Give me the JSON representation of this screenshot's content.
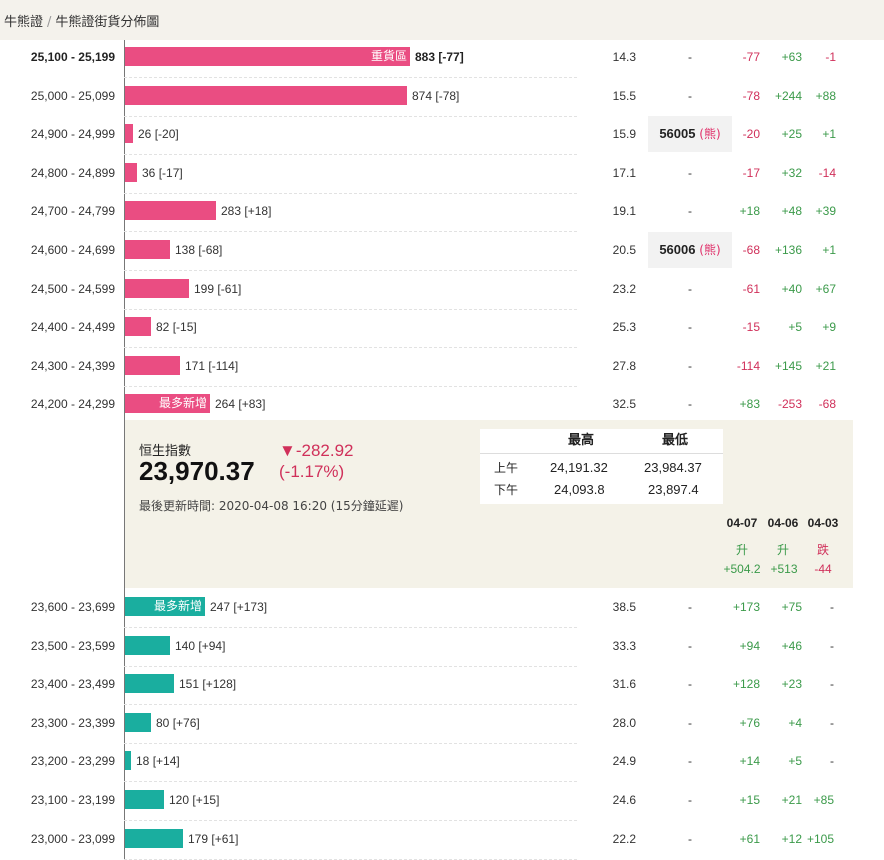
{
  "breadcrumb": {
    "parent": "牛熊證",
    "current": "牛熊證街貨分佈圖"
  },
  "bull_rows": [
    {
      "range": "25,100 - 25,199",
      "value": 883,
      "change": "[-77]",
      "ratio": "14.3",
      "strike": "-",
      "tag": "重貨區",
      "bold": true,
      "changes": [
        "-77",
        "+63",
        "-1"
      ]
    },
    {
      "range": "25,000 - 25,099",
      "value": 874,
      "change": "[-78]",
      "ratio": "15.5",
      "strike": "-",
      "tag": "",
      "bold": false,
      "changes": [
        "-78",
        "+244",
        "+88"
      ]
    },
    {
      "range": "24,900 - 24,999",
      "value": 26,
      "change": "[-20]",
      "ratio": "15.9",
      "strike": "56005",
      "strike_kind": "熊",
      "tag": "",
      "bold": false,
      "changes": [
        "-20",
        "+25",
        "+1"
      ]
    },
    {
      "range": "24,800 - 24,899",
      "value": 36,
      "change": "[-17]",
      "ratio": "17.1",
      "strike": "-",
      "tag": "",
      "bold": false,
      "changes": [
        "-17",
        "+32",
        "-14"
      ]
    },
    {
      "range": "24,700 - 24,799",
      "value": 283,
      "change": "[+18]",
      "ratio": "19.1",
      "strike": "-",
      "tag": "",
      "bold": false,
      "changes": [
        "+18",
        "+48",
        "+39"
      ]
    },
    {
      "range": "24,600 - 24,699",
      "value": 138,
      "change": "[-68]",
      "ratio": "20.5",
      "strike": "56006",
      "strike_kind": "熊",
      "tag": "",
      "bold": false,
      "changes": [
        "-68",
        "+136",
        "+1"
      ]
    },
    {
      "range": "24,500 - 24,599",
      "value": 199,
      "change": "[-61]",
      "ratio": "23.2",
      "strike": "-",
      "tag": "",
      "bold": false,
      "changes": [
        "-61",
        "+40",
        "+67"
      ]
    },
    {
      "range": "24,400 - 24,499",
      "value": 82,
      "change": "[-15]",
      "ratio": "25.3",
      "strike": "-",
      "tag": "",
      "bold": false,
      "changes": [
        "-15",
        "+5",
        "+9"
      ]
    },
    {
      "range": "24,300 - 24,399",
      "value": 171,
      "change": "[-114]",
      "ratio": "27.8",
      "strike": "-",
      "tag": "",
      "bold": false,
      "changes": [
        "-114",
        "+145",
        "+21"
      ]
    },
    {
      "range": "24,200 - 24,299",
      "value": 264,
      "change": "[+83]",
      "ratio": "32.5",
      "strike": "-",
      "tag": "最多新增",
      "bold": false,
      "changes": [
        "+83",
        "-253",
        "-68"
      ]
    }
  ],
  "bear_rows": [
    {
      "range": "23,600 - 23,699",
      "value": 247,
      "change": "[+173]",
      "ratio": "38.5",
      "strike": "-",
      "tag": "最多新增",
      "changes": [
        "+173",
        "+75",
        "-"
      ]
    },
    {
      "range": "23,500 - 23,599",
      "value": 140,
      "change": "[+94]",
      "ratio": "33.3",
      "strike": "-",
      "tag": "",
      "changes": [
        "+94",
        "+46",
        "-"
      ]
    },
    {
      "range": "23,400 - 23,499",
      "value": 151,
      "change": "[+128]",
      "ratio": "31.6",
      "strike": "-",
      "tag": "",
      "changes": [
        "+128",
        "+23",
        "-"
      ]
    },
    {
      "range": "23,300 - 23,399",
      "value": 80,
      "change": "[+76]",
      "ratio": "28.0",
      "strike": "-",
      "tag": "",
      "changes": [
        "+76",
        "+4",
        "-"
      ]
    },
    {
      "range": "23,200 - 23,299",
      "value": 18,
      "change": "[+14]",
      "ratio": "24.9",
      "strike": "-",
      "tag": "",
      "changes": [
        "+14",
        "+5",
        "-"
      ]
    },
    {
      "range": "23,100 - 23,199",
      "value": 120,
      "change": "[+15]",
      "ratio": "24.6",
      "strike": "-",
      "tag": "",
      "changes": [
        "+15",
        "+21",
        "+85"
      ]
    },
    {
      "range": "23,000 - 23,099",
      "value": 179,
      "change": "[+61]",
      "ratio": "22.2",
      "strike": "-",
      "tag": "",
      "changes": [
        "+61",
        "+12",
        "+105"
      ]
    }
  ],
  "index": {
    "name": "恒生指數",
    "value": "23,970.37",
    "change": "▼-282.92",
    "change_pct": "(-1.17%)",
    "updated": "最後更新時間: 2020-04-08 16:20 (15分鐘延遲)"
  },
  "high_low": {
    "headers": [
      "最高",
      "最低"
    ],
    "rows": [
      {
        "label": "上午",
        "high": "24,191.32",
        "low": "23,984.37"
      },
      {
        "label": "下午",
        "high": "24,093.8",
        "low": "23,897.4"
      }
    ]
  },
  "daily": [
    {
      "date": "04-07",
      "direction": "升",
      "change": "+504.2"
    },
    {
      "date": "04-06",
      "direction": "升",
      "change": "+513"
    },
    {
      "date": "04-03",
      "direction": "跌",
      "change": "-44"
    }
  ],
  "colors": {
    "bull": "#ea4d82",
    "bear": "#1aae9f",
    "positive": "#3b9a4a",
    "negative": "#d0305a"
  }
}
